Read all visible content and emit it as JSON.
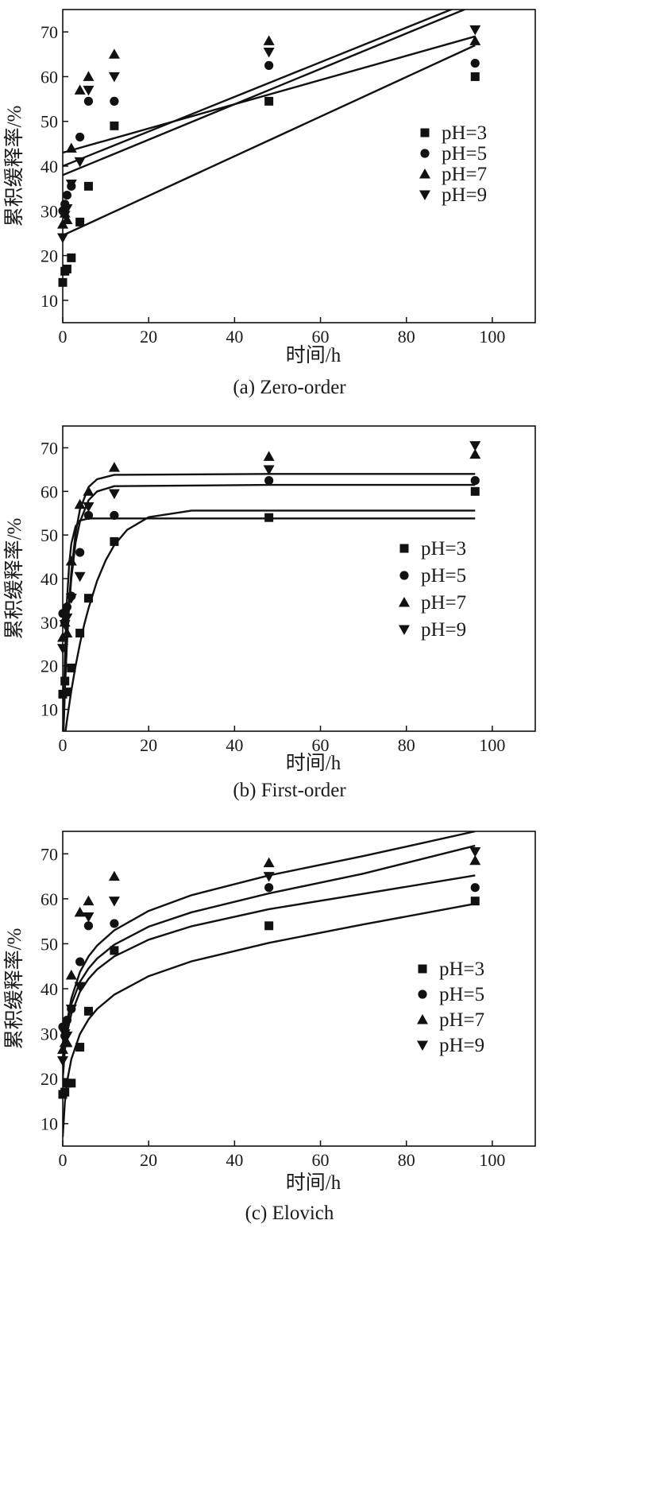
{
  "chart_data": [
    {
      "type": "scatter",
      "fit_model": "line",
      "caption": "(a) Zero-order",
      "xlabel": "时间/h",
      "ylabel": "累积缓释率/%",
      "xlim": [
        0,
        110
      ],
      "ylim": [
        5,
        75
      ],
      "xticks": [
        0,
        20,
        40,
        60,
        80,
        100
      ],
      "yticks": [
        10,
        20,
        30,
        40,
        50,
        60,
        70
      ],
      "grid": false,
      "legend_position": "right",
      "series": [
        {
          "name": "pH=3",
          "marker": "square",
          "points": [
            [
              0,
              14
            ],
            [
              0.5,
              16.5
            ],
            [
              1,
              17
            ],
            [
              2,
              19.5
            ],
            [
              4,
              27.5
            ],
            [
              6,
              35.5
            ],
            [
              12,
              49
            ],
            [
              48,
              54.5
            ],
            [
              96,
              60
            ]
          ],
          "fit": {
            "x": [
              0,
              96
            ],
            "y": [
              24.5,
              67
            ]
          }
        },
        {
          "name": "pH=5",
          "marker": "circle",
          "points": [
            [
              0,
              30
            ],
            [
              0.5,
              31.5
            ],
            [
              1,
              33.5
            ],
            [
              2,
              35.5
            ],
            [
              4,
              46.5
            ],
            [
              6,
              54.5
            ],
            [
              12,
              54.5
            ],
            [
              48,
              62.5
            ],
            [
              96,
              63
            ]
          ],
          "fit": {
            "x": [
              0,
              96
            ],
            "y": [
              38,
              76
            ]
          }
        },
        {
          "name": "pH=7",
          "marker": "triangle-up",
          "points": [
            [
              0,
              27
            ],
            [
              0.5,
              29.5
            ],
            [
              1,
              28
            ],
            [
              2,
              44
            ],
            [
              4,
              57
            ],
            [
              6,
              60
            ],
            [
              12,
              65
            ],
            [
              48,
              68
            ],
            [
              96,
              68
            ]
          ],
          "fit": {
            "x": [
              0,
              96
            ],
            "y": [
              43,
              69
            ]
          }
        },
        {
          "name": "pH=9",
          "marker": "triangle-down",
          "points": [
            [
              0,
              24
            ],
            [
              0.5,
              29
            ],
            [
              1,
              30.5
            ],
            [
              2,
              36
            ],
            [
              4,
              41
            ],
            [
              6,
              57
            ],
            [
              12,
              60
            ],
            [
              48,
              65.5
            ],
            [
              96,
              70.5
            ]
          ],
          "fit": {
            "x": [
              0,
              93
            ],
            "y": [
              40,
              76
            ]
          }
        }
      ]
    },
    {
      "type": "scatter",
      "fit_model": "curve",
      "caption": "(b) First-order",
      "xlabel": "时间/h",
      "ylabel": "累积缓释率/%",
      "xlim": [
        0,
        110
      ],
      "ylim": [
        5,
        75
      ],
      "xticks": [
        0,
        20,
        40,
        60,
        80,
        100
      ],
      "yticks": [
        10,
        20,
        30,
        40,
        50,
        60,
        70
      ],
      "grid": false,
      "legend_position": "right",
      "series": [
        {
          "name": "pH=3",
          "marker": "square",
          "points": [
            [
              0,
              13.5
            ],
            [
              0.5,
              16.5
            ],
            [
              1,
              14
            ],
            [
              2,
              19.5
            ],
            [
              4,
              27.5
            ],
            [
              6,
              35.5
            ],
            [
              12,
              48.5
            ],
            [
              48,
              54
            ],
            [
              96,
              60
            ]
          ],
          "fit": {
            "x": [
              0,
              1,
              2,
              3,
              4,
              5,
              6,
              8,
              10,
              12,
              15,
              20,
              30,
              48,
              96
            ],
            "y": [
              0,
              7.6,
              14.3,
              20,
              25,
              29.4,
              33.2,
              39.5,
              44.2,
              47.7,
              51.2,
              54.1,
              55.6,
              55.6,
              55.6
            ]
          }
        },
        {
          "name": "pH=5",
          "marker": "circle",
          "points": [
            [
              0,
              32
            ],
            [
              0.5,
              30
            ],
            [
              1,
              33.5
            ],
            [
              2,
              36
            ],
            [
              4,
              46
            ],
            [
              6,
              54.5
            ],
            [
              12,
              54.5
            ],
            [
              48,
              62.5
            ],
            [
              96,
              62.5
            ]
          ],
          "fit": {
            "x": [
              0,
              0.5,
              1,
              1.5,
              2,
              3,
              4,
              6,
              10,
              48,
              96
            ],
            "y": [
              0,
              22,
              35.2,
              43.3,
              48,
              52,
              53.3,
              53.8,
              53.8,
              53.8,
              53.8
            ]
          }
        },
        {
          "name": "pH=7",
          "marker": "triangle-up",
          "points": [
            [
              0,
              26.5
            ],
            [
              0.5,
              30
            ],
            [
              1,
              27.5
            ],
            [
              2,
              44
            ],
            [
              4,
              57
            ],
            [
              6,
              60
            ],
            [
              12,
              65.5
            ],
            [
              48,
              68
            ],
            [
              96,
              68.5
            ]
          ],
          "fit": {
            "x": [
              0,
              0.5,
              1,
              1.5,
              2,
              3,
              4,
              6,
              8,
              12,
              48,
              96
            ],
            "y": [
              0,
              15,
              26.5,
              35,
              41.5,
              50.5,
              55.8,
              61,
              62.8,
              63.8,
              64,
              64
            ]
          }
        },
        {
          "name": "pH=9",
          "marker": "triangle-down",
          "points": [
            [
              0,
              24
            ],
            [
              0.5,
              29.5
            ],
            [
              1,
              31
            ],
            [
              2,
              35.5
            ],
            [
              4,
              40.5
            ],
            [
              6,
              56.5
            ],
            [
              12,
              59.5
            ],
            [
              48,
              65
            ],
            [
              96,
              70.5
            ]
          ],
          "fit": {
            "x": [
              0,
              0.5,
              1,
              1.5,
              2,
              3,
              4,
              6,
              8,
              12,
              48,
              96
            ],
            "y": [
              0,
              14.4,
              25.5,
              33.8,
              40,
              48.3,
              53,
              58,
              60,
              61.2,
              61.5,
              61.5
            ]
          }
        }
      ]
    },
    {
      "type": "scatter",
      "fit_model": "curve",
      "caption": "(c) Elovich",
      "xlabel": "时间/h",
      "ylabel": "累积缓释率/%",
      "xlim": [
        0,
        110
      ],
      "ylim": [
        5,
        75
      ],
      "xticks": [
        0,
        20,
        40,
        60,
        80,
        100
      ],
      "yticks": [
        10,
        20,
        30,
        40,
        50,
        60,
        70
      ],
      "grid": false,
      "legend_position": "right",
      "series": [
        {
          "name": "pH=3",
          "marker": "square",
          "points": [
            [
              0,
              16.5
            ],
            [
              0.5,
              17
            ],
            [
              1,
              19
            ],
            [
              2,
              19
            ],
            [
              4,
              27
            ],
            [
              6,
              35
            ],
            [
              12,
              48.5
            ],
            [
              48,
              54
            ],
            [
              96,
              59.5
            ]
          ],
          "fit": {
            "x": [
              0,
              0.5,
              1,
              2,
              4,
              6,
              8,
              12,
              20,
              30,
              48,
              70,
              96
            ],
            "y": [
              7,
              14.8,
              19.3,
              24.3,
              29.9,
              33.2,
              35.5,
              38.7,
              42.8,
              46.1,
              50.2,
              54.3,
              58.9
            ]
          }
        },
        {
          "name": "pH=5",
          "marker": "circle",
          "points": [
            [
              0,
              31.5
            ],
            [
              0.5,
              29.5
            ],
            [
              1,
              33
            ],
            [
              2,
              35.5
            ],
            [
              4,
              46
            ],
            [
              6,
              54
            ],
            [
              12,
              54.5
            ],
            [
              48,
              62.5
            ],
            [
              96,
              62.5
            ]
          ],
          "fit": {
            "x": [
              0,
              0.5,
              1,
              2,
              4,
              6,
              8,
              12,
              20,
              30,
              48,
              70,
              96
            ],
            "y": [
              20,
              26.4,
              30.1,
              34.4,
              39.3,
              42.2,
              44.3,
              47.2,
              50.9,
              53.9,
              57.7,
              61.1,
              65.2
            ]
          }
        },
        {
          "name": "pH=7",
          "marker": "triangle-up",
          "points": [
            [
              0,
              26.5
            ],
            [
              0.5,
              28
            ],
            [
              1,
              28
            ],
            [
              2,
              43
            ],
            [
              4,
              57
            ],
            [
              6,
              59.5
            ],
            [
              12,
              65
            ],
            [
              48,
              68
            ],
            [
              96,
              68.5
            ]
          ],
          "fit": {
            "x": [
              0,
              0.5,
              1,
              2,
              4,
              6,
              8,
              12,
              20,
              30,
              48,
              70,
              96
            ],
            "y": [
              20,
              27.8,
              32.5,
              37.8,
              43.7,
              47.2,
              49.6,
              53,
              57.3,
              60.8,
              65.2,
              69.5,
              75
            ]
          }
        },
        {
          "name": "pH=9",
          "marker": "triangle-down",
          "points": [
            [
              0,
              24
            ],
            [
              0.5,
              30
            ],
            [
              1,
              29.5
            ],
            [
              2,
              35.5
            ],
            [
              4,
              40.5
            ],
            [
              6,
              56
            ],
            [
              12,
              59.5
            ],
            [
              48,
              65
            ],
            [
              96,
              70.5
            ]
          ],
          "fit": {
            "x": [
              0,
              0.5,
              1,
              2,
              4,
              6,
              8,
              12,
              20,
              30,
              48,
              70,
              96
            ],
            "y": [
              22,
              28.3,
              32.1,
              36.5,
              41.5,
              44.5,
              46.7,
              49.8,
              53.8,
              57,
              61.2,
              65.6,
              71.8
            ]
          }
        }
      ]
    }
  ]
}
